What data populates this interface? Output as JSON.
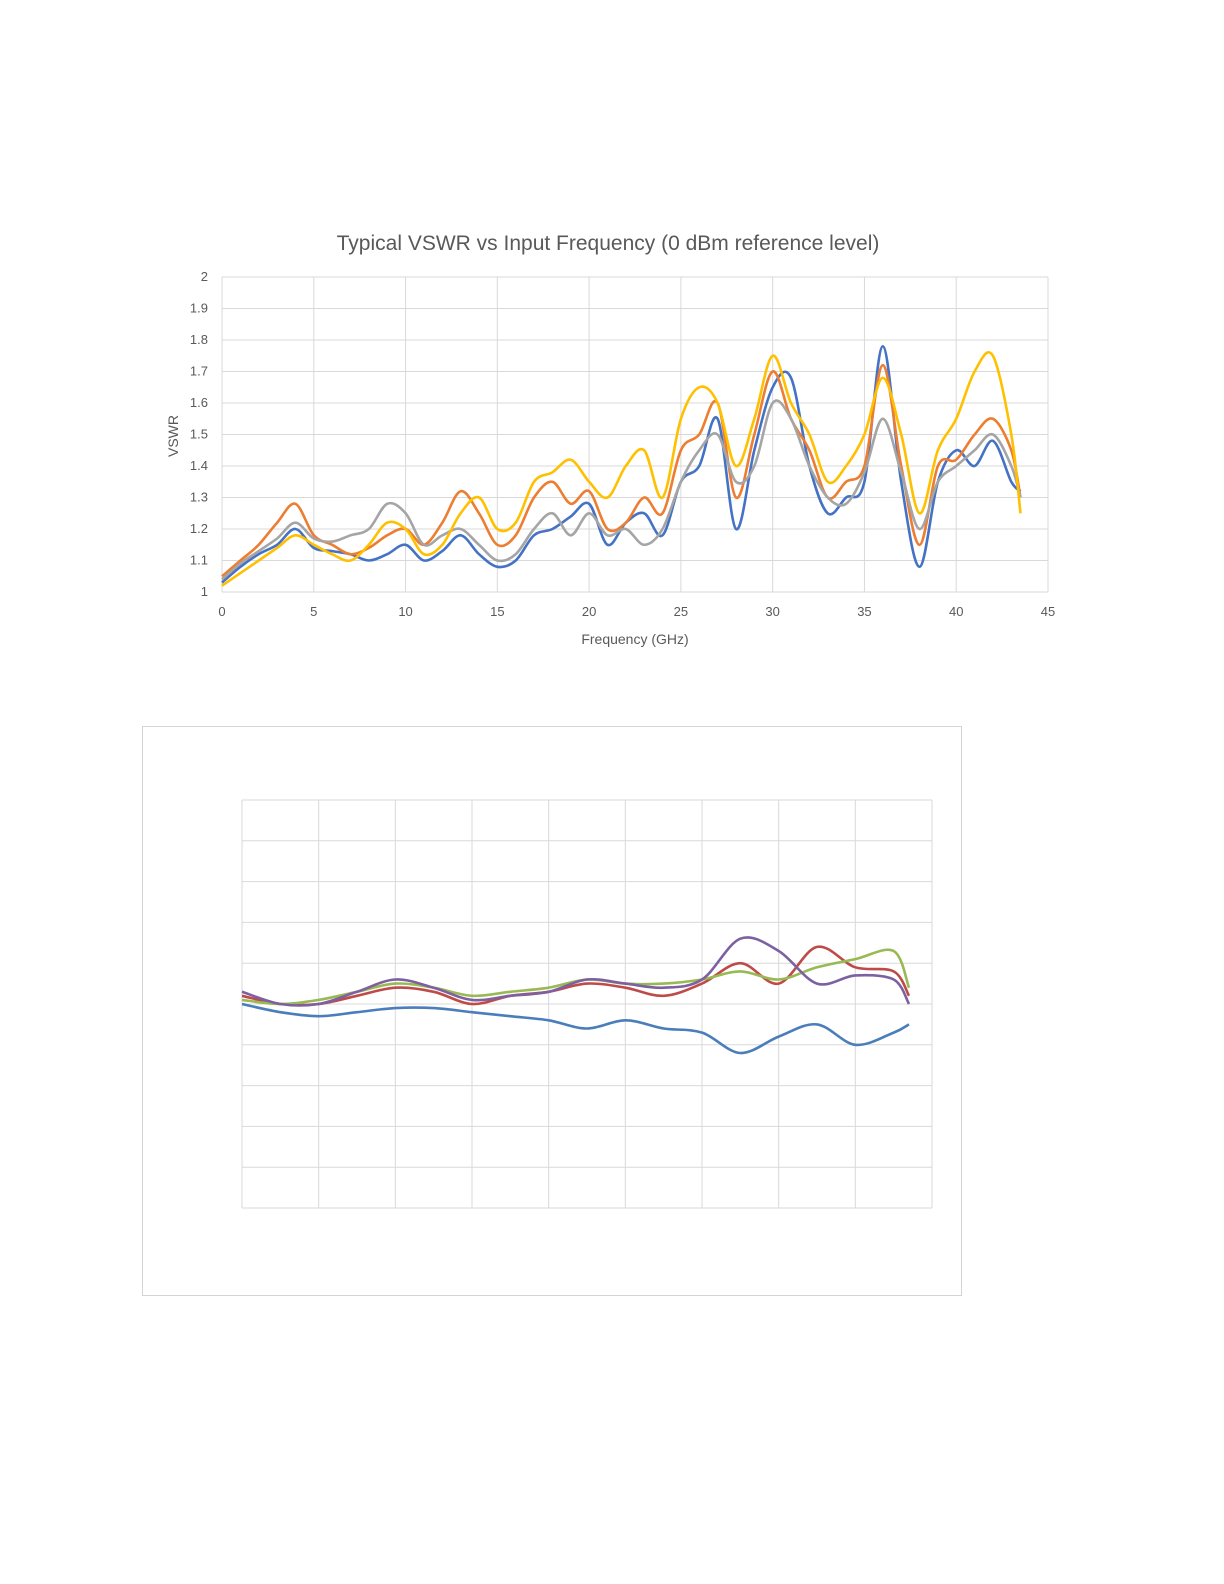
{
  "chart_data": [
    {
      "type": "line",
      "title": "Typical VSWR vs Input Frequency (0 dBm reference level)",
      "xlabel": "Frequency (GHz)",
      "ylabel": "VSWR",
      "xlim": [
        0,
        45
      ],
      "ylim": [
        1,
        2
      ],
      "xticks": [
        "0",
        "5",
        "10",
        "15",
        "20",
        "25",
        "30",
        "35",
        "40",
        "45"
      ],
      "yticks": [
        "1",
        "1.1",
        "1.2",
        "1.3",
        "1.4",
        "1.5",
        "1.6",
        "1.7",
        "1.8",
        "1.9",
        "2"
      ],
      "grid": true,
      "legend": "none",
      "series": [
        {
          "color": "#4472c4",
          "x": [
            0,
            1,
            2,
            3,
            4,
            5,
            6,
            7,
            8,
            9,
            10,
            11,
            12,
            13,
            14,
            15,
            16,
            17,
            18,
            19,
            20,
            21,
            22,
            23,
            24,
            25,
            26,
            27,
            28,
            29,
            30,
            31,
            32,
            33,
            34,
            35,
            36,
            37,
            38,
            39,
            40,
            41,
            42,
            43,
            43.5
          ],
          "y": [
            1.03,
            1.08,
            1.12,
            1.15,
            1.2,
            1.14,
            1.13,
            1.12,
            1.1,
            1.12,
            1.15,
            1.1,
            1.13,
            1.18,
            1.12,
            1.08,
            1.1,
            1.18,
            1.2,
            1.24,
            1.28,
            1.15,
            1.22,
            1.25,
            1.18,
            1.35,
            1.4,
            1.55,
            1.2,
            1.45,
            1.65,
            1.68,
            1.4,
            1.25,
            1.3,
            1.35,
            1.78,
            1.35,
            1.08,
            1.35,
            1.45,
            1.4,
            1.48,
            1.35,
            1.32
          ]
        },
        {
          "color": "#ed7d31",
          "x": [
            0,
            1,
            2,
            3,
            4,
            5,
            6,
            7,
            8,
            9,
            10,
            11,
            12,
            13,
            14,
            15,
            16,
            17,
            18,
            19,
            20,
            21,
            22,
            23,
            24,
            25,
            26,
            27,
            28,
            29,
            30,
            31,
            32,
            33,
            34,
            35,
            36,
            37,
            38,
            39,
            40,
            41,
            42,
            43,
            43.5
          ],
          "y": [
            1.05,
            1.1,
            1.15,
            1.22,
            1.28,
            1.18,
            1.15,
            1.12,
            1.14,
            1.18,
            1.2,
            1.15,
            1.22,
            1.32,
            1.25,
            1.15,
            1.18,
            1.3,
            1.35,
            1.28,
            1.32,
            1.2,
            1.22,
            1.3,
            1.25,
            1.45,
            1.5,
            1.6,
            1.3,
            1.5,
            1.7,
            1.55,
            1.45,
            1.3,
            1.35,
            1.4,
            1.72,
            1.4,
            1.15,
            1.4,
            1.42,
            1.5,
            1.55,
            1.45,
            1.3
          ]
        },
        {
          "color": "#a5a5a5",
          "x": [
            0,
            1,
            2,
            3,
            4,
            5,
            6,
            7,
            8,
            9,
            10,
            11,
            12,
            13,
            14,
            15,
            16,
            17,
            18,
            19,
            20,
            21,
            22,
            23,
            24,
            25,
            26,
            27,
            28,
            29,
            30,
            31,
            32,
            33,
            34,
            35,
            36,
            37,
            38,
            39,
            40,
            41,
            42,
            43,
            43.5
          ],
          "y": [
            1.04,
            1.09,
            1.13,
            1.17,
            1.22,
            1.17,
            1.16,
            1.18,
            1.2,
            1.28,
            1.25,
            1.15,
            1.18,
            1.2,
            1.15,
            1.1,
            1.12,
            1.2,
            1.25,
            1.18,
            1.25,
            1.18,
            1.2,
            1.15,
            1.2,
            1.35,
            1.45,
            1.5,
            1.35,
            1.4,
            1.6,
            1.55,
            1.4,
            1.3,
            1.28,
            1.38,
            1.55,
            1.38,
            1.2,
            1.35,
            1.4,
            1.45,
            1.5,
            1.4,
            1.3
          ]
        },
        {
          "color": "#ffc000",
          "x": [
            0,
            1,
            2,
            3,
            4,
            5,
            6,
            7,
            8,
            9,
            10,
            11,
            12,
            13,
            14,
            15,
            16,
            17,
            18,
            19,
            20,
            21,
            22,
            23,
            24,
            25,
            26,
            27,
            28,
            29,
            30,
            31,
            32,
            33,
            34,
            35,
            36,
            37,
            38,
            39,
            40,
            41,
            42,
            43,
            43.5
          ],
          "y": [
            1.02,
            1.06,
            1.1,
            1.14,
            1.18,
            1.15,
            1.12,
            1.1,
            1.15,
            1.22,
            1.2,
            1.12,
            1.15,
            1.25,
            1.3,
            1.2,
            1.22,
            1.35,
            1.38,
            1.42,
            1.35,
            1.3,
            1.4,
            1.45,
            1.3,
            1.55,
            1.65,
            1.6,
            1.4,
            1.55,
            1.75,
            1.6,
            1.5,
            1.35,
            1.4,
            1.5,
            1.68,
            1.5,
            1.25,
            1.45,
            1.55,
            1.7,
            1.75,
            1.5,
            1.25
          ]
        }
      ]
    },
    {
      "type": "line",
      "grid": true,
      "legend": "none",
      "xlim": [
        0,
        9
      ],
      "ylim": [
        0,
        10
      ],
      "series": [
        {
          "color": "#4a7ebb",
          "x": [
            0,
            0.5,
            1,
            1.5,
            2,
            2.5,
            3,
            3.5,
            4,
            4.5,
            5,
            5.5,
            6,
            6.5,
            7,
            7.5,
            8,
            8.5,
            8.7
          ],
          "y": [
            5.0,
            4.8,
            4.7,
            4.8,
            4.9,
            4.9,
            4.8,
            4.7,
            4.6,
            4.4,
            4.6,
            4.4,
            4.3,
            3.8,
            4.2,
            4.5,
            4.0,
            4.3,
            4.5
          ]
        },
        {
          "color": "#be4b48",
          "x": [
            0,
            0.5,
            1,
            1.5,
            2,
            2.5,
            3,
            3.5,
            4,
            4.5,
            5,
            5.5,
            6,
            6.5,
            7,
            7.5,
            8,
            8.5,
            8.7
          ],
          "y": [
            5.2,
            5.0,
            5.0,
            5.2,
            5.4,
            5.3,
            5.0,
            5.2,
            5.3,
            5.5,
            5.4,
            5.2,
            5.5,
            6.0,
            5.5,
            6.4,
            5.9,
            5.8,
            5.2
          ]
        },
        {
          "color": "#98b954",
          "x": [
            0,
            0.5,
            1,
            1.5,
            2,
            2.5,
            3,
            3.5,
            4,
            4.5,
            5,
            5.5,
            6,
            6.5,
            7,
            7.5,
            8,
            8.5,
            8.7
          ],
          "y": [
            5.1,
            5.0,
            5.1,
            5.3,
            5.5,
            5.4,
            5.2,
            5.3,
            5.4,
            5.6,
            5.5,
            5.5,
            5.6,
            5.8,
            5.6,
            5.9,
            6.1,
            6.3,
            5.4
          ]
        },
        {
          "color": "#7d60a0",
          "x": [
            0,
            0.5,
            1,
            1.5,
            2,
            2.5,
            3,
            3.5,
            4,
            4.5,
            5,
            5.5,
            6,
            6.5,
            7,
            7.5,
            8,
            8.5,
            8.7
          ],
          "y": [
            5.3,
            5.0,
            5.0,
            5.3,
            5.6,
            5.4,
            5.1,
            5.2,
            5.3,
            5.6,
            5.5,
            5.4,
            5.6,
            6.6,
            6.3,
            5.5,
            5.7,
            5.6,
            5.0
          ]
        }
      ]
    }
  ]
}
